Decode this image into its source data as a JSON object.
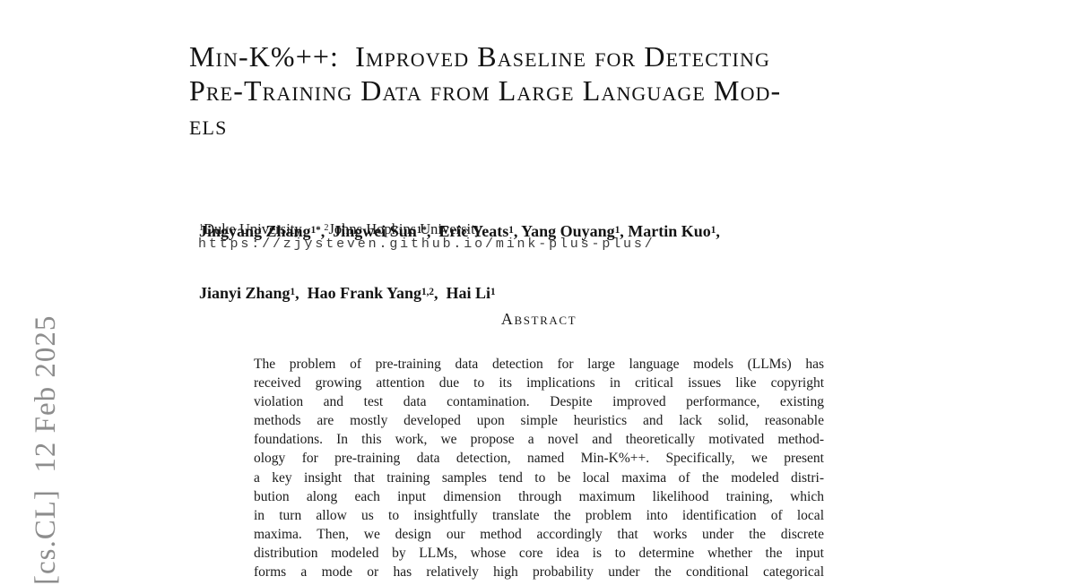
{
  "page": {
    "background": "#ffffff",
    "text_color": "#161616"
  },
  "watermark": {
    "text": "[cs.CL]  12 Feb 2025",
    "color": "#8d8d8d"
  },
  "title": {
    "lines": [
      "Min-K%++:  Improved Baseline for Detecting",
      "Pre-Training Data from Large Language Mod-",
      "els"
    ]
  },
  "authors": {
    "line1": [
      {
        "t": "Jingyang Zhang",
        "s": "1*"
      },
      {
        "t": ",  Jingwei Sun",
        "s": "1*"
      },
      {
        "t": ",  Eric Yeats",
        "s": "1"
      },
      {
        "t": ", Yang Ouyang",
        "s": "1"
      },
      {
        "t": ", Martin Kuo",
        "s": "1"
      },
      {
        "t": ","
      }
    ],
    "line2": [
      {
        "t": "Jianyi Zhang",
        "s": "1"
      },
      {
        "t": ",  Hao Frank Yang",
        "s": "1,2"
      },
      {
        "t": ",  Hai Li",
        "s": "1"
      }
    ],
    "affiliations": [
      {
        "s": "1"
      },
      {
        "t": "Duke University      "
      },
      {
        "s": "2"
      },
      {
        "t": "Johns Hopkins University"
      }
    ],
    "website_url": "https://zjysteven.github.io/mink-plus-plus/"
  },
  "abstract": {
    "heading": "Abstract",
    "lines": [
      "The problem of pre-training data detection for large language models (LLMs) has",
      "received growing attention due to its implications in critical issues like copyright",
      "violation and test data contamination. Despite improved performance, existing",
      "methods are mostly developed upon simple heuristics and lack solid, reasonable",
      "foundations. In this work, we propose a novel and theoretically motivated method-",
      "ology for pre-training data detection, named Min-K%++. Specifically, we present",
      "a key insight that training samples tend to be local maxima of the modeled distri-",
      "bution along each input dimension through maximum likelihood training, which",
      "in turn allow us to insightfully translate the problem into identification of local",
      "maxima. Then, we design our method accordingly that works under the discrete",
      "distribution modeled by LLMs, whose core idea is to determine whether the input",
      "forms a mode or has relatively high probability under the conditional categorical"
    ]
  }
}
